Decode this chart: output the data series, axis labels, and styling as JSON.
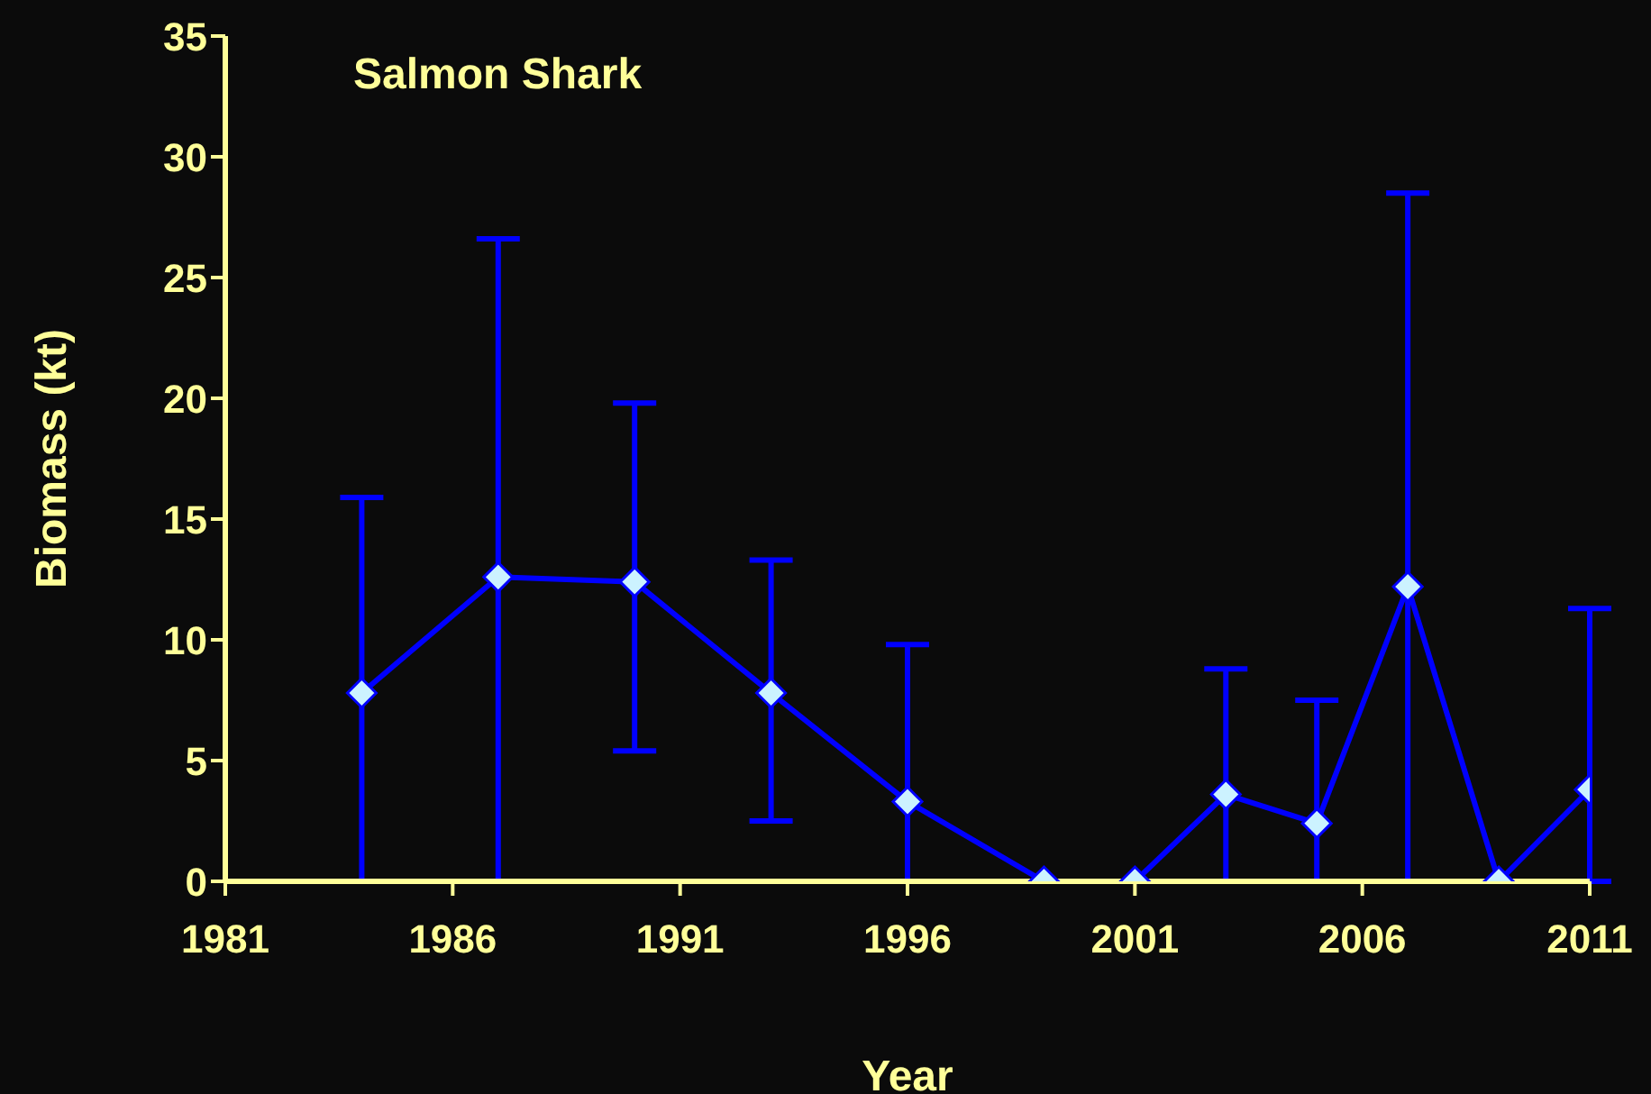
{
  "chart_data": {
    "type": "line",
    "title": "Salmon Shark",
    "xlabel": "Year",
    "ylabel": "Biomass (kt)",
    "x": [
      1984,
      1987,
      1990,
      1993,
      1996,
      1999,
      2001,
      2003,
      2005,
      2007,
      2009,
      2011
    ],
    "series": [
      {
        "color": "#0000ff",
        "values": [
          7.8,
          12.6,
          12.4,
          7.8,
          3.3,
          0,
          0,
          3.6,
          2.4,
          12.2,
          0,
          3.8
        ],
        "errors": [
          [
            0,
            15.9
          ],
          [
            0,
            26.6
          ],
          [
            5.4,
            19.8
          ],
          [
            2.5,
            13.3
          ],
          [
            0,
            9.8
          ],
          null,
          null,
          [
            0,
            8.8
          ],
          [
            0,
            7.5
          ],
          [
            0,
            28.5
          ],
          null,
          [
            0,
            11.3
          ]
        ]
      }
    ],
    "xlim": [
      1981,
      2011
    ],
    "xticks": [
      1981,
      1986,
      1991,
      1996,
      2001,
      2006,
      2011
    ],
    "ylim": [
      0,
      35
    ],
    "yticks": [
      0,
      5,
      10,
      15,
      20,
      25,
      30,
      35
    ],
    "marker": "diamond",
    "line_style": "solid",
    "grid": false,
    "legend": false
  }
}
